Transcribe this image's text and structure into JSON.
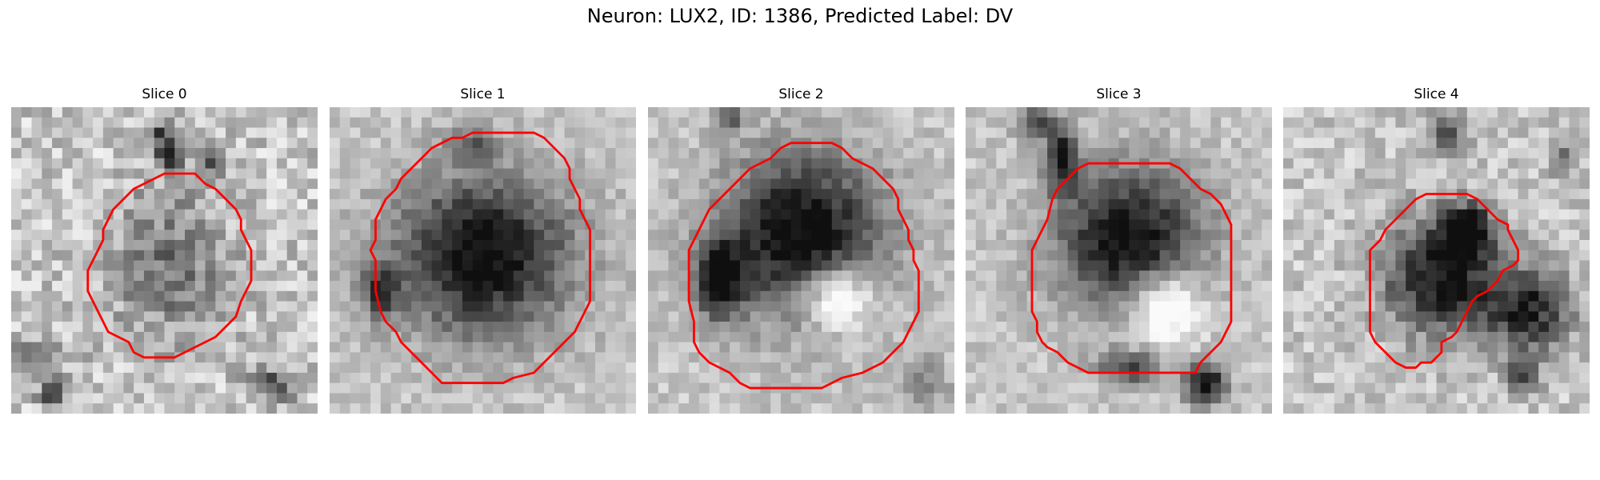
{
  "figure": {
    "title": "Neuron: LUX2, ID: 1386, Predicted Label: DV"
  },
  "colors": {
    "contour": "#ff0000",
    "background": "#ffffff"
  },
  "panels": [
    {
      "title": "Slice 0",
      "contour": [
        [
          16,
          6.5
        ],
        [
          18,
          6.5
        ],
        [
          19,
          7.5
        ],
        [
          20,
          8
        ],
        [
          21,
          9
        ],
        [
          22,
          10
        ],
        [
          22.5,
          11
        ],
        [
          22.5,
          12
        ],
        [
          23,
          13
        ],
        [
          23.5,
          14
        ],
        [
          23.5,
          17
        ],
        [
          23,
          18
        ],
        [
          22.5,
          19
        ],
        [
          22,
          20.5
        ],
        [
          21,
          21.5
        ],
        [
          20,
          22.5
        ],
        [
          19,
          23
        ],
        [
          18,
          23.5
        ],
        [
          17,
          24
        ],
        [
          16,
          24.5
        ],
        [
          13,
          24.5
        ],
        [
          12,
          24
        ],
        [
          11.5,
          23
        ],
        [
          10.5,
          22.5
        ],
        [
          9.5,
          22
        ],
        [
          9,
          21
        ],
        [
          8.5,
          20
        ],
        [
          8,
          19
        ],
        [
          7.5,
          18
        ],
        [
          7.5,
          16
        ],
        [
          8,
          15
        ],
        [
          8.5,
          14
        ],
        [
          9,
          13
        ],
        [
          9,
          12
        ],
        [
          9.5,
          11
        ],
        [
          10,
          10
        ],
        [
          11,
          9
        ],
        [
          12,
          8
        ],
        [
          13,
          7.5
        ],
        [
          14,
          7
        ],
        [
          15,
          6.5
        ],
        [
          16,
          6.5
        ]
      ],
      "blobs": [
        {
          "x": 15.5,
          "y": 15.5,
          "rx": 7,
          "ry": 9,
          "d": 0.35
        },
        {
          "x": 15.5,
          "y": 4.5,
          "rx": 1.6,
          "ry": 1.6,
          "d": 0.85
        },
        {
          "x": 14.5,
          "y": 2.5,
          "rx": 1.5,
          "ry": 1.5,
          "d": 0.45
        },
        {
          "x": 2.5,
          "y": 24.5,
          "rx": 4,
          "ry": 2,
          "d": 0.3
        },
        {
          "x": 4,
          "y": 28,
          "rx": 1.5,
          "ry": 1.5,
          "d": 0.7
        },
        {
          "x": 26,
          "y": 27,
          "rx": 3,
          "ry": 2,
          "d": 0.45
        },
        {
          "x": 20,
          "y": 5.5,
          "rx": 1.5,
          "ry": 1.5,
          "d": 0.5
        }
      ],
      "noise": 0.38
    },
    {
      "title": "Slice 1",
      "contour": [
        [
          17,
          2.5
        ],
        [
          20,
          2.5
        ],
        [
          21,
          3
        ],
        [
          22,
          4
        ],
        [
          23,
          5
        ],
        [
          23.5,
          6
        ],
        [
          23.5,
          7
        ],
        [
          24,
          8
        ],
        [
          24.5,
          9
        ],
        [
          24.5,
          10
        ],
        [
          25,
          11
        ],
        [
          25.5,
          12
        ],
        [
          25.5,
          19
        ],
        [
          25,
          20
        ],
        [
          24.5,
          21
        ],
        [
          24,
          22
        ],
        [
          23,
          23
        ],
        [
          22,
          24
        ],
        [
          21,
          25
        ],
        [
          20,
          26
        ],
        [
          18,
          26.5
        ],
        [
          17,
          27
        ],
        [
          15,
          27
        ],
        [
          11,
          27
        ],
        [
          10,
          26
        ],
        [
          9,
          25
        ],
        [
          8,
          24
        ],
        [
          7,
          23
        ],
        [
          6.5,
          22
        ],
        [
          5.5,
          21
        ],
        [
          5,
          20
        ],
        [
          4.5,
          18
        ],
        [
          4.5,
          15
        ],
        [
          4,
          14
        ],
        [
          4.5,
          13
        ],
        [
          4.5,
          11
        ],
        [
          5,
          10
        ],
        [
          5.5,
          9
        ],
        [
          6,
          8.5
        ],
        [
          6.5,
          8
        ],
        [
          7,
          7
        ],
        [
          8,
          6
        ],
        [
          9,
          5
        ],
        [
          10,
          4
        ],
        [
          11,
          3.5
        ],
        [
          12,
          3
        ],
        [
          13,
          3
        ],
        [
          14,
          2.5
        ],
        [
          17,
          2.5
        ]
      ],
      "blobs": [
        {
          "x": 15,
          "y": 14.5,
          "rx": 11,
          "ry": 10,
          "d": 0.82
        },
        {
          "x": 14,
          "y": 3.5,
          "rx": 3,
          "ry": 2,
          "d": 0.35
        },
        {
          "x": 5,
          "y": 18,
          "rx": 2.5,
          "ry": 3,
          "d": 0.55
        }
      ],
      "noise": 0.22
    },
    {
      "title": "Slice 2",
      "contour": [
        [
          15,
          3.5
        ],
        [
          18,
          3.5
        ],
        [
          19,
          4
        ],
        [
          20,
          5
        ],
        [
          21,
          5.5
        ],
        [
          22,
          6
        ],
        [
          23,
          7
        ],
        [
          24,
          8
        ],
        [
          24.5,
          9
        ],
        [
          24.5,
          10
        ],
        [
          25,
          11
        ],
        [
          25.5,
          12
        ],
        [
          25.5,
          13
        ],
        [
          26,
          14
        ],
        [
          26,
          15
        ],
        [
          26.5,
          16
        ],
        [
          26.5,
          20
        ],
        [
          26,
          21
        ],
        [
          25.5,
          22
        ],
        [
          25,
          23
        ],
        [
          24,
          24
        ],
        [
          23,
          25
        ],
        [
          22,
          25.5
        ],
        [
          21,
          26
        ],
        [
          19,
          26.5
        ],
        [
          18,
          27
        ],
        [
          17,
          27.5
        ],
        [
          10,
          27.5
        ],
        [
          9,
          27
        ],
        [
          8,
          26
        ],
        [
          7,
          25.5
        ],
        [
          6,
          25
        ],
        [
          5,
          24
        ],
        [
          4.5,
          23
        ],
        [
          4.5,
          21
        ],
        [
          4,
          19
        ],
        [
          4,
          14
        ],
        [
          4.5,
          13
        ],
        [
          5,
          12
        ],
        [
          5.5,
          11
        ],
        [
          6,
          10
        ],
        [
          7,
          9
        ],
        [
          8,
          8
        ],
        [
          9,
          7
        ],
        [
          10,
          6
        ],
        [
          11,
          5.5
        ],
        [
          12,
          5
        ],
        [
          13,
          4
        ],
        [
          14,
          3.5
        ],
        [
          15,
          3.5
        ]
      ],
      "blobs": [
        {
          "x": 15,
          "y": 12.5,
          "rx": 10,
          "ry": 10,
          "d": 0.85
        },
        {
          "x": 18.5,
          "y": 18.5,
          "rx": 4.5,
          "ry": 4,
          "d": -0.6
        },
        {
          "x": 7,
          "y": 17,
          "rx": 3,
          "ry": 5,
          "d": 0.7
        },
        {
          "x": 8,
          "y": 1,
          "rx": 2,
          "ry": 1.5,
          "d": 0.45
        },
        {
          "x": 27,
          "y": 27,
          "rx": 3,
          "ry": 3,
          "d": 0.3
        }
      ],
      "noise": 0.22
    },
    {
      "title": "Slice 3",
      "contour": [
        [
          12,
          5.5
        ],
        [
          20,
          5.5
        ],
        [
          21,
          6
        ],
        [
          22,
          7
        ],
        [
          23,
          8
        ],
        [
          24,
          8.5
        ],
        [
          25,
          9.5
        ],
        [
          25.5,
          10.5
        ],
        [
          26,
          11.5
        ],
        [
          26,
          21
        ],
        [
          25.5,
          22
        ],
        [
          25,
          23
        ],
        [
          24.5,
          23.5
        ],
        [
          24,
          24
        ],
        [
          23,
          25
        ],
        [
          22.5,
          26
        ],
        [
          21,
          26
        ],
        [
          19,
          26
        ],
        [
          18,
          26
        ],
        [
          17,
          26
        ],
        [
          12,
          26
        ],
        [
          11,
          25.5
        ],
        [
          10,
          25
        ],
        [
          9,
          24
        ],
        [
          8,
          23.5
        ],
        [
          7.5,
          23
        ],
        [
          7,
          22
        ],
        [
          7,
          21
        ],
        [
          6.5,
          20
        ],
        [
          6.5,
          19
        ],
        [
          6.5,
          14
        ],
        [
          7,
          13
        ],
        [
          7.5,
          12
        ],
        [
          8,
          11
        ],
        [
          8.5,
          9
        ],
        [
          9,
          8
        ],
        [
          10,
          7
        ],
        [
          11,
          6
        ],
        [
          12,
          5.5
        ]
      ],
      "blobs": [
        {
          "x": 16,
          "y": 13,
          "rx": 9,
          "ry": 9,
          "d": 0.82
        },
        {
          "x": 19.5,
          "y": 19.5,
          "rx": 4.5,
          "ry": 4.5,
          "d": -0.6
        },
        {
          "x": 9.5,
          "y": 5,
          "rx": 2,
          "ry": 4,
          "d": 0.7
        },
        {
          "x": 7,
          "y": 1.5,
          "rx": 2.5,
          "ry": 2,
          "d": 0.5
        },
        {
          "x": 23.5,
          "y": 27,
          "rx": 2.5,
          "ry": 2.5,
          "d": 0.85
        },
        {
          "x": 16,
          "y": 25.5,
          "rx": 4,
          "ry": 2,
          "d": 0.55
        }
      ],
      "noise": 0.22
    },
    {
      "title": "Slice 4",
      "contour": [
        [
          15,
          8.5
        ],
        [
          17,
          8.5
        ],
        [
          18,
          8.5
        ],
        [
          19,
          9
        ],
        [
          20,
          10
        ],
        [
          21,
          11
        ],
        [
          22,
          11.5
        ],
        [
          22,
          12
        ],
        [
          22.5,
          13
        ],
        [
          23,
          14
        ],
        [
          23,
          15
        ],
        [
          22.5,
          15.5
        ],
        [
          21.5,
          16
        ],
        [
          21,
          17
        ],
        [
          20.5,
          17.5
        ],
        [
          20,
          18
        ],
        [
          19,
          18.5
        ],
        [
          18.5,
          19
        ],
        [
          18,
          20
        ],
        [
          17.5,
          21
        ],
        [
          17,
          22
        ],
        [
          16.5,
          22.5
        ],
        [
          15.5,
          23
        ],
        [
          15.5,
          24
        ],
        [
          15,
          24.5
        ],
        [
          14.5,
          25
        ],
        [
          13.5,
          25
        ],
        [
          13,
          25.5
        ],
        [
          12,
          25.5
        ],
        [
          11,
          25
        ],
        [
          10,
          24
        ],
        [
          9,
          23
        ],
        [
          8.5,
          22
        ],
        [
          8.5,
          14
        ],
        [
          9.5,
          13
        ],
        [
          10,
          12
        ],
        [
          11,
          11
        ],
        [
          12,
          10
        ],
        [
          13,
          9
        ],
        [
          14,
          8.5
        ],
        [
          15,
          8.5
        ]
      ],
      "blobs": [
        {
          "x": 15.5,
          "y": 16.5,
          "rx": 7,
          "ry": 7,
          "d": 0.8
        },
        {
          "x": 24,
          "y": 20,
          "rx": 5,
          "ry": 5,
          "d": 0.7
        },
        {
          "x": 18,
          "y": 12,
          "rx": 3,
          "ry": 3,
          "d": 0.85
        },
        {
          "x": 16,
          "y": 2.5,
          "rx": 2.5,
          "ry": 2.5,
          "d": 0.45
        },
        {
          "x": 23.5,
          "y": 26.5,
          "rx": 2,
          "ry": 2,
          "d": 0.55
        },
        {
          "x": 27.5,
          "y": 5,
          "rx": 2,
          "ry": 3,
          "d": 0.3
        }
      ],
      "noise": 0.3
    }
  ]
}
